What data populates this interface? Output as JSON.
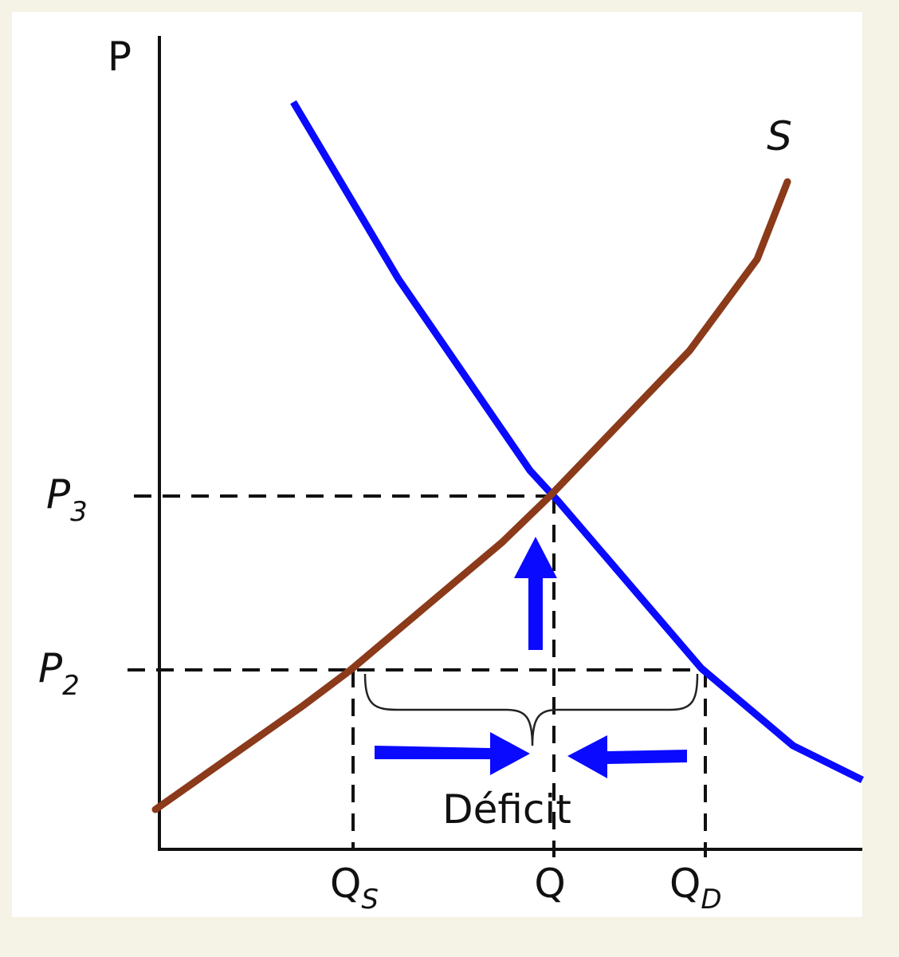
{
  "axis_label": "P",
  "curve_label": "S",
  "price_levels": [
    {
      "main": "P",
      "sub": "3"
    },
    {
      "main": "P",
      "sub": "2"
    }
  ],
  "quantities": [
    {
      "main": "Q",
      "sub": "S"
    },
    {
      "main": "Q"
    },
    {
      "main": "Q",
      "sub": "D"
    }
  ],
  "annotation": "Déficit"
}
